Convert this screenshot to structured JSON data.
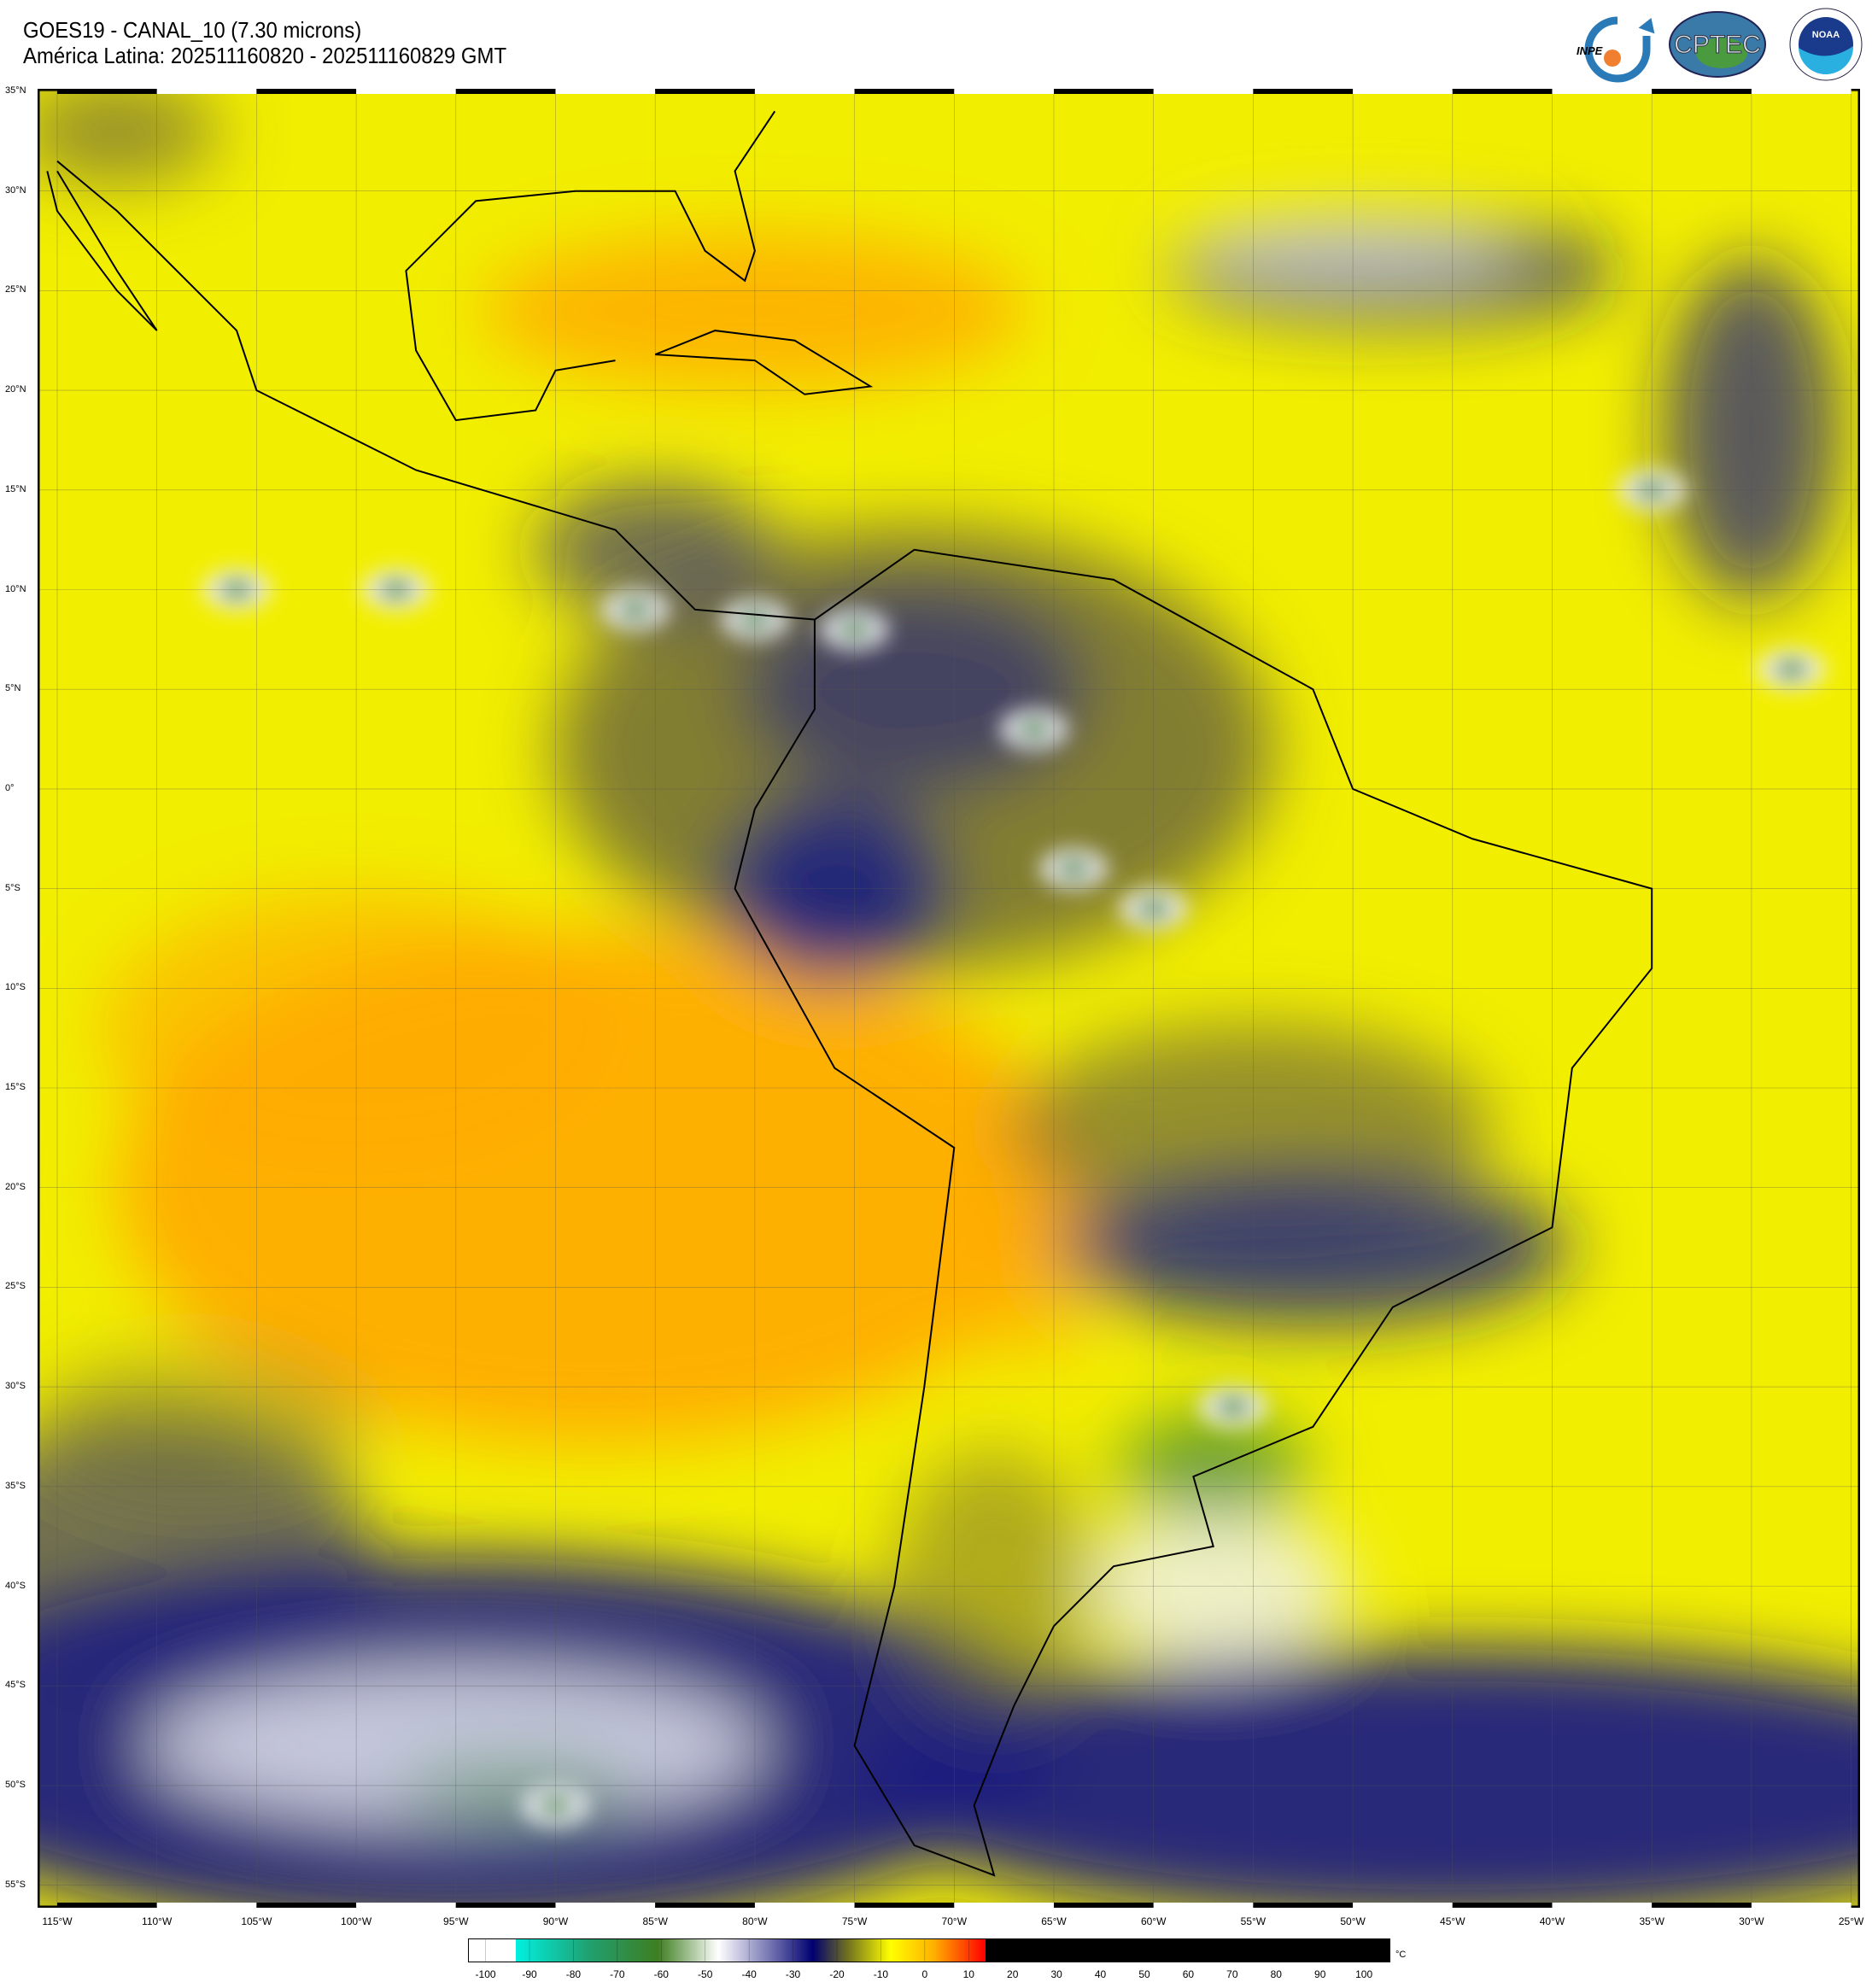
{
  "header": {
    "title_line1": "GOES19 - CANAL_10 (7.30 microns)",
    "title_line2": "América Latina: 202511160820 - 202511160829 GMT"
  },
  "logos": {
    "inpe": "INPE",
    "cptec": "CPTEC",
    "noaa": "NOAA",
    "noaa_ring_top": "NATIONAL OCEANIC AND ATMOSPHERIC ADMINISTRATION",
    "noaa_ring_bottom": "U.S. DEPARTMENT OF COMMERCE"
  },
  "map": {
    "lat_labels": [
      "35°N",
      "30°N",
      "25°N",
      "20°N",
      "15°N",
      "10°N",
      "5°N",
      "0°",
      "5°S",
      "10°S",
      "15°S",
      "20°S",
      "25°S",
      "30°S",
      "35°S",
      "40°S",
      "45°S",
      "50°S",
      "55°S"
    ],
    "lon_labels": [
      "115°W",
      "110°W",
      "105°W",
      "100°W",
      "95°W",
      "90°W",
      "85°W",
      "80°W",
      "75°W",
      "70°W",
      "65°W",
      "60°W",
      "55°W",
      "50°W",
      "45°W",
      "40°W",
      "35°W",
      "30°W",
      "25°W"
    ],
    "colors": {
      "base": "#f2ee00",
      "orange": "#ffa800",
      "olive": "#6e6a3a",
      "navy": "#1a1f80",
      "white": "#eef0f6",
      "green": "#3f8a3c"
    }
  },
  "colorbar": {
    "unit": "°C",
    "ticks": [
      "-100",
      "-90",
      "-80",
      "-70",
      "-60",
      "-50",
      "-40",
      "-30",
      "-20",
      "-10",
      "0",
      "10",
      "20",
      "30",
      "40",
      "50",
      "60",
      "70",
      "80",
      "90",
      "100"
    ],
    "stops": [
      {
        "value": -100,
        "color": "#ffffff"
      },
      {
        "value": -97,
        "color": "#ffffff"
      },
      {
        "value": -97,
        "color": "#00f0e0"
      },
      {
        "value": -80,
        "color": "#20a070"
      },
      {
        "value": -64,
        "color": "#3e7e20"
      },
      {
        "value": -50,
        "color": "#ffffff"
      },
      {
        "value": -40,
        "color": "#8c8cc0"
      },
      {
        "value": -28,
        "color": "#000070"
      },
      {
        "value": -20,
        "color": "#707020"
      },
      {
        "value": -10,
        "color": "#ffff00"
      },
      {
        "value": 0,
        "color": "#ffb000"
      },
      {
        "value": 12,
        "color": "#ff0000"
      },
      {
        "value": 12,
        "color": "#000000"
      },
      {
        "value": 100,
        "color": "#000000"
      }
    ]
  }
}
